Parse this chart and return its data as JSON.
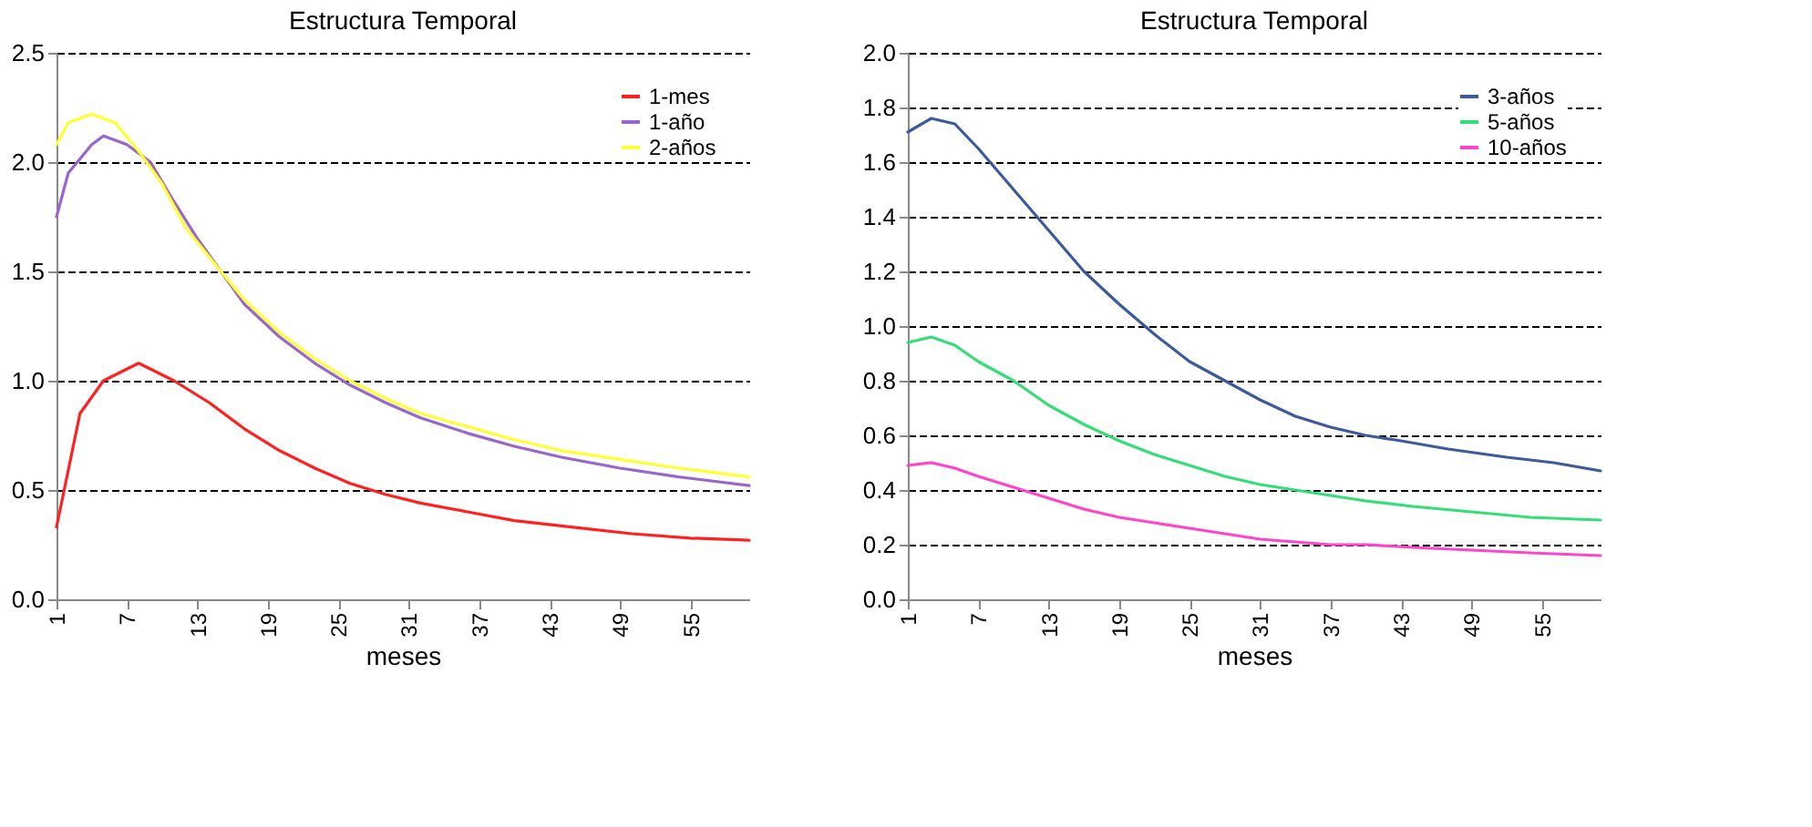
{
  "chart_data": [
    {
      "type": "line",
      "title": "Estructura Temporal",
      "xlabel": "meses",
      "xlim": [
        1,
        60
      ],
      "xticks": [
        1,
        7,
        13,
        19,
        25,
        31,
        37,
        43,
        49,
        55
      ],
      "ylim": [
        0,
        2.5
      ],
      "yticks": [
        {
          "value": 0,
          "label": "0.0"
        },
        0.5,
        {
          "value": 1,
          "label": "1.0"
        },
        1.5,
        {
          "value": 2,
          "label": "2.0"
        },
        2.5
      ],
      "grid": "y",
      "legend": "top right",
      "marker": "none",
      "line_style": "solid",
      "series": [
        {
          "name": "1-mes",
          "color": "#ff2020",
          "x": [
            1,
            3,
            5,
            8,
            11,
            14,
            17,
            20,
            23,
            26,
            29,
            32,
            36,
            40,
            45,
            50,
            55,
            60
          ],
          "values": [
            0.33,
            0.85,
            1.0,
            1.08,
            1.0,
            0.9,
            0.78,
            0.68,
            0.6,
            0.53,
            0.48,
            0.44,
            0.4,
            0.36,
            0.33,
            0.3,
            0.28,
            0.27
          ]
        },
        {
          "name": "1-año",
          "color": "#9966cc",
          "x": [
            1,
            2,
            4,
            5,
            7,
            9,
            11,
            13,
            15,
            17,
            20,
            23,
            26,
            29,
            32,
            36,
            40,
            44,
            49,
            54,
            60
          ],
          "values": [
            1.75,
            1.95,
            2.08,
            2.12,
            2.08,
            2.0,
            1.82,
            1.65,
            1.5,
            1.35,
            1.2,
            1.08,
            0.98,
            0.9,
            0.83,
            0.76,
            0.7,
            0.65,
            0.6,
            0.56,
            0.52
          ]
        },
        {
          "name": "2-años",
          "color": "#ffff33",
          "x": [
            1,
            2,
            4,
            6,
            8,
            10,
            12,
            15,
            17,
            20,
            23,
            26,
            29,
            32,
            36,
            40,
            44,
            49,
            54,
            60
          ],
          "values": [
            2.08,
            2.18,
            2.22,
            2.18,
            2.05,
            1.9,
            1.7,
            1.5,
            1.37,
            1.22,
            1.1,
            1.0,
            0.92,
            0.85,
            0.79,
            0.73,
            0.68,
            0.64,
            0.6,
            0.56
          ]
        }
      ]
    },
    {
      "type": "line",
      "title": "Estructura Temporal",
      "xlabel": "meses",
      "xlim": [
        1,
        60
      ],
      "xticks": [
        1,
        7,
        13,
        19,
        25,
        31,
        37,
        43,
        49,
        55
      ],
      "ylim": [
        0,
        2.0
      ],
      "yticks": [
        {
          "value": 0,
          "label": "0.0"
        },
        0.2,
        0.4,
        0.6,
        0.8,
        {
          "value": 1,
          "label": "1.0"
        },
        1.2,
        1.4,
        1.6,
        1.8,
        {
          "value": 2,
          "label": "2.0"
        }
      ],
      "grid": "y",
      "legend": "top right",
      "marker": "none",
      "line_style": "solid",
      "series": [
        {
          "name": "3-años",
          "color": "#3d5a99",
          "x": [
            1,
            3,
            5,
            7,
            10,
            13,
            16,
            19,
            22,
            25,
            28,
            31,
            34,
            37,
            40,
            43,
            47,
            52,
            56,
            60
          ],
          "values": [
            1.71,
            1.76,
            1.74,
            1.65,
            1.5,
            1.35,
            1.2,
            1.08,
            0.97,
            0.87,
            0.8,
            0.73,
            0.67,
            0.63,
            0.6,
            0.58,
            0.55,
            0.52,
            0.5,
            0.47
          ]
        },
        {
          "name": "5-años",
          "color": "#33dd77",
          "x": [
            1,
            3,
            5,
            7,
            10,
            13,
            16,
            19,
            22,
            25,
            28,
            31,
            34,
            37,
            40,
            44,
            49,
            54,
            60
          ],
          "values": [
            0.94,
            0.96,
            0.93,
            0.87,
            0.8,
            0.71,
            0.64,
            0.58,
            0.53,
            0.49,
            0.45,
            0.42,
            0.4,
            0.38,
            0.36,
            0.34,
            0.32,
            0.3,
            0.29
          ]
        },
        {
          "name": "10-años",
          "color": "#ff44cc",
          "x": [
            1,
            3,
            5,
            7,
            10,
            13,
            16,
            19,
            22,
            25,
            28,
            31,
            34,
            37,
            40,
            44,
            49,
            54,
            60
          ],
          "values": [
            0.49,
            0.5,
            0.48,
            0.45,
            0.41,
            0.37,
            0.33,
            0.3,
            0.28,
            0.26,
            0.24,
            0.22,
            0.21,
            0.2,
            0.2,
            0.19,
            0.18,
            0.17,
            0.16
          ]
        }
      ]
    }
  ]
}
